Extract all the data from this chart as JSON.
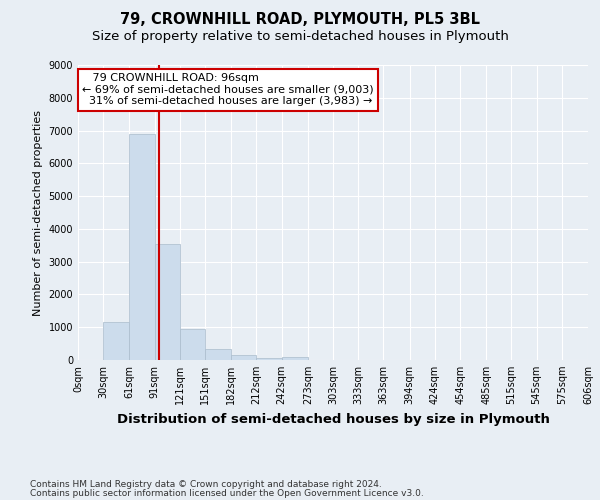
{
  "title": "79, CROWNHILL ROAD, PLYMOUTH, PL5 3BL",
  "subtitle": "Size of property relative to semi-detached houses in Plymouth",
  "xlabel": "Distribution of semi-detached houses by size in Plymouth",
  "ylabel": "Number of semi-detached properties",
  "bar_color": "#ccdcec",
  "bar_edge_color": "#aabccc",
  "background_color": "#e8eef4",
  "grid_color": "#ffffff",
  "categories": [
    "0sqm",
    "30sqm",
    "61sqm",
    "91sqm",
    "121sqm",
    "151sqm",
    "182sqm",
    "212sqm",
    "242sqm",
    "273sqm",
    "303sqm",
    "333sqm",
    "363sqm",
    "394sqm",
    "424sqm",
    "454sqm",
    "485sqm",
    "515sqm",
    "545sqm",
    "575sqm",
    "606sqm"
  ],
  "bar_lefts": [
    0,
    30,
    61,
    91,
    121,
    151,
    182,
    212,
    242,
    273,
    303,
    333,
    363,
    394,
    424,
    454,
    485,
    515,
    545,
    575
  ],
  "bar_heights": [
    0,
    1150,
    6880,
    3550,
    950,
    330,
    150,
    50,
    100,
    0,
    0,
    0,
    0,
    0,
    0,
    0,
    0,
    0,
    0,
    0
  ],
  "bar_widths": [
    30,
    31,
    30,
    30,
    30,
    31,
    30,
    30,
    31,
    30,
    30,
    30,
    31,
    30,
    30,
    31,
    30,
    30,
    30,
    31
  ],
  "property_size": 96,
  "property_name": "79 CROWNHILL ROAD: 96sqm",
  "pct_smaller": 69,
  "n_smaller": 9003,
  "pct_larger": 31,
  "n_larger": 3983,
  "annotation_box_color": "#ffffff",
  "annotation_box_edge": "#cc0000",
  "red_line_color": "#cc0000",
  "ylim": [
    0,
    9000
  ],
  "yticks": [
    0,
    1000,
    2000,
    3000,
    4000,
    5000,
    6000,
    7000,
    8000,
    9000
  ],
  "footnote_line1": "Contains HM Land Registry data © Crown copyright and database right 2024.",
  "footnote_line2": "Contains public sector information licensed under the Open Government Licence v3.0.",
  "title_fontsize": 10.5,
  "subtitle_fontsize": 9.5,
  "xlabel_fontsize": 9.5,
  "ylabel_fontsize": 8,
  "tick_fontsize": 7,
  "annot_fontsize": 8,
  "footnote_fontsize": 6.5
}
